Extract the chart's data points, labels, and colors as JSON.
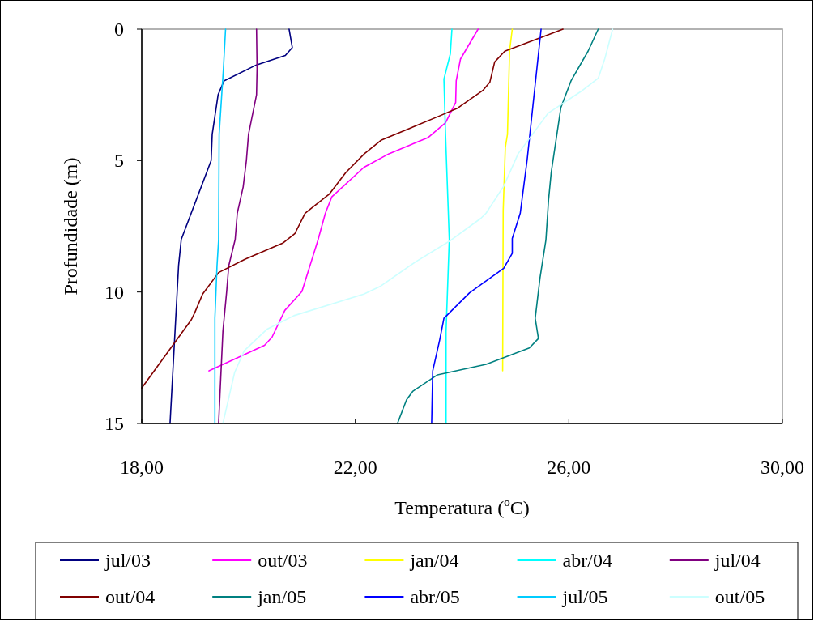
{
  "chart_data": {
    "type": "line",
    "xlabel": "Temperatura (ºC)",
    "ylabel": "Profundidade (m)",
    "xlim": [
      18,
      30
    ],
    "xticks": [
      {
        "value": 18,
        "label": "18,00"
      },
      {
        "value": 22,
        "label": "22,00"
      },
      {
        "value": 26,
        "label": "26,00"
      },
      {
        "value": 30,
        "label": "30,00"
      }
    ],
    "ylim": [
      15,
      0
    ],
    "yticks": [
      0,
      5,
      10,
      15
    ],
    "grid": false,
    "legend": "bottom",
    "marker": "none",
    "line_style": "solid",
    "series": [
      {
        "name": "jul/03",
        "color": "#000080",
        "x": [
          20.76,
          20.82,
          20.69,
          20.15,
          19.54,
          19.43,
          19.32,
          19.3,
          18.74,
          18.69,
          18.53
        ],
        "values": [
          0,
          0.7,
          1.0,
          1.36,
          1.97,
          2.5,
          4,
          5,
          8,
          9,
          15
        ]
      },
      {
        "name": "out/03",
        "color": "#ff00ff",
        "x": [
          24.3,
          23.97,
          23.89,
          23.88,
          23.69,
          23.36,
          22.63,
          22.16,
          21.56,
          21.44,
          21.3,
          21.0,
          20.68,
          20.44,
          20.3,
          19.26
        ],
        "values": [
          0,
          1.14,
          1.97,
          2.79,
          3.56,
          4.13,
          4.74,
          5.26,
          6.38,
          7.0,
          8.03,
          9.98,
          10.7,
          11.72,
          12.03,
          13.0
        ]
      },
      {
        "name": "jan/04",
        "color": "#ffff00",
        "x": [
          24.94,
          24.89,
          24.85,
          24.81,
          24.77,
          24.76
        ],
        "values": [
          0,
          0.82,
          4.0,
          4.5,
          6.9,
          13
        ]
      },
      {
        "name": "abr/04",
        "color": "#00ffff",
        "x": [
          23.81,
          23.78,
          23.66,
          23.69,
          23.76,
          23.7,
          23.7
        ],
        "values": [
          0,
          0.94,
          1.9,
          4,
          8,
          11.5,
          15
        ]
      },
      {
        "name": "jul/04",
        "color": "#800080",
        "x": [
          20.15,
          20.16,
          20.15,
          20.1,
          20.0,
          19.96,
          19.9,
          19.79,
          19.75,
          19.63,
          19.59,
          19.52,
          19.44
        ],
        "values": [
          0,
          1.5,
          2.5,
          3,
          4,
          5,
          6,
          7,
          8,
          9,
          10,
          11.5,
          15
        ]
      },
      {
        "name": "out/04",
        "color": "#800000",
        "x": [
          25.89,
          25.46,
          24.8,
          24.61,
          24.52,
          24.39,
          23.92,
          23.58,
          22.48,
          22.17,
          21.82,
          21.51,
          21.06,
          20.87,
          20.65,
          19.94,
          19.44,
          19.14,
          18.99,
          18.93,
          18.03,
          18.0
        ],
        "values": [
          0,
          0.33,
          0.84,
          1.25,
          2.02,
          2.33,
          3.0,
          3.3,
          4.23,
          4.74,
          5.46,
          6.28,
          7.0,
          7.77,
          8.13,
          8.75,
          9.26,
          10.08,
          10.8,
          11.05,
          13.57,
          13.65
        ]
      },
      {
        "name": "jan/05",
        "color": "#008080",
        "x": [
          26.55,
          26.36,
          26.04,
          25.85,
          25.67,
          25.62,
          25.57,
          25.46,
          25.37,
          25.43,
          25.26,
          24.45,
          23.54,
          23.08,
          22.96,
          22.79
        ],
        "values": [
          0,
          0.84,
          1.97,
          2.99,
          5.45,
          6.49,
          8.03,
          9.46,
          11.0,
          11.77,
          12.13,
          12.75,
          13.15,
          13.77,
          14.1,
          15
        ]
      },
      {
        "name": "abr/05",
        "color": "#0000ff",
        "x": [
          25.48,
          25.22,
          25.09,
          24.94,
          24.94,
          24.78,
          24.14,
          23.66,
          23.58,
          23.45,
          23.43
        ],
        "values": [
          0,
          4.95,
          7.0,
          7.96,
          8.53,
          9.1,
          10.03,
          11.0,
          11.83,
          13.0,
          15
        ]
      },
      {
        "name": "jul/05",
        "color": "#00ccff",
        "x": [
          19.57,
          19.53,
          19.45,
          19.44,
          19.41,
          19.37,
          19.37
        ],
        "values": [
          0,
          1.5,
          4,
          8,
          9,
          11,
          15
        ]
      },
      {
        "name": "out/05",
        "color": "#ccffff",
        "x": [
          26.82,
          26.67,
          26.55,
          26.22,
          25.61,
          25.05,
          24.78,
          24.45,
          24.35,
          23.79,
          23.13,
          22.48,
          22.16,
          20.85,
          20.35,
          19.92,
          19.74,
          19.52
        ],
        "values": [
          0,
          1.15,
          1.87,
          2.38,
          3.2,
          4.74,
          5.97,
          7.0,
          7.2,
          8.03,
          8.85,
          9.77,
          10.08,
          10.9,
          11.41,
          12.23,
          13.06,
          15
        ]
      }
    ]
  }
}
